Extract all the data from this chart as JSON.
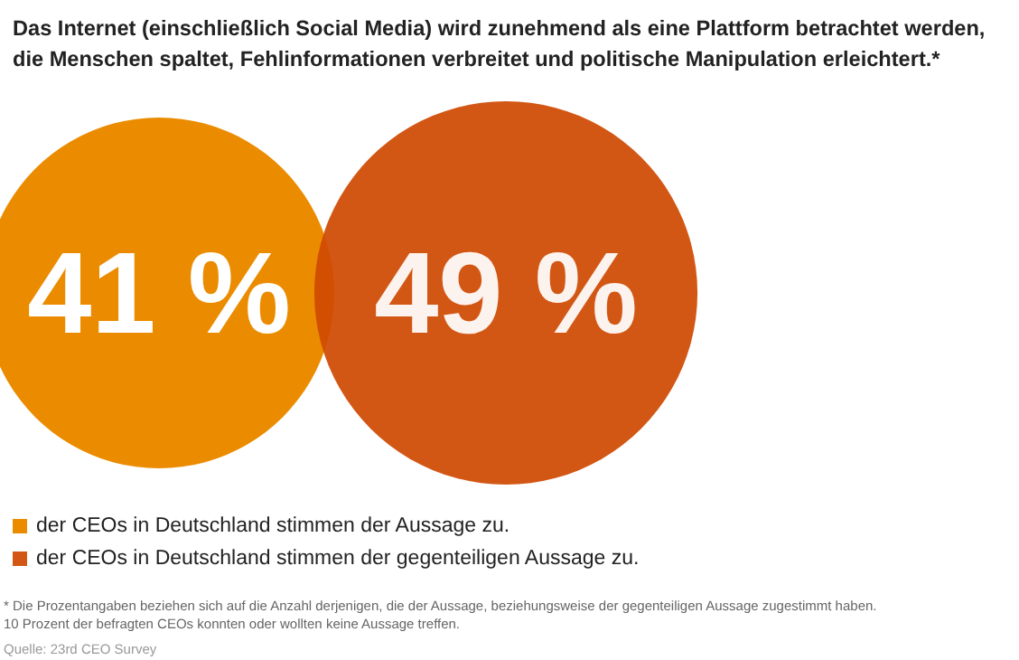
{
  "chart_data": {
    "type": "other",
    "title": "Das Internet (einschließlich Social Media) wird zunehmend als eine Plattform betrachtet werden,\ndie Menschen spaltet, Fehlinformationen verbreitet und politische Manipulation erleichtert.*",
    "series": [
      {
        "name": "der CEOs in Deutschland stimmen der Aussage zu.",
        "color": "#eb8c00",
        "values": [
          41
        ],
        "value_labels": [
          "41 %"
        ]
      },
      {
        "name": "der CEOs in Deutschland stimmen der gegenteiligen Aussage zu.",
        "color": "#d04a02",
        "values": [
          49
        ],
        "value_labels": [
          "49 %"
        ]
      }
    ],
    "data_labels": true,
    "legend": "bottom left",
    "annotations": [
      "* Die Prozentangaben beziehen sich auf die Anzahl derjenigen, die der Aussage, beziehungsweise der gegenteiligen Aussage zugestimmt haben.\n10 Prozent der befragten CEOs konnten oder wollten keine Aussage treffen.",
      "Quelle: 23rd CEO Survey"
    ]
  }
}
